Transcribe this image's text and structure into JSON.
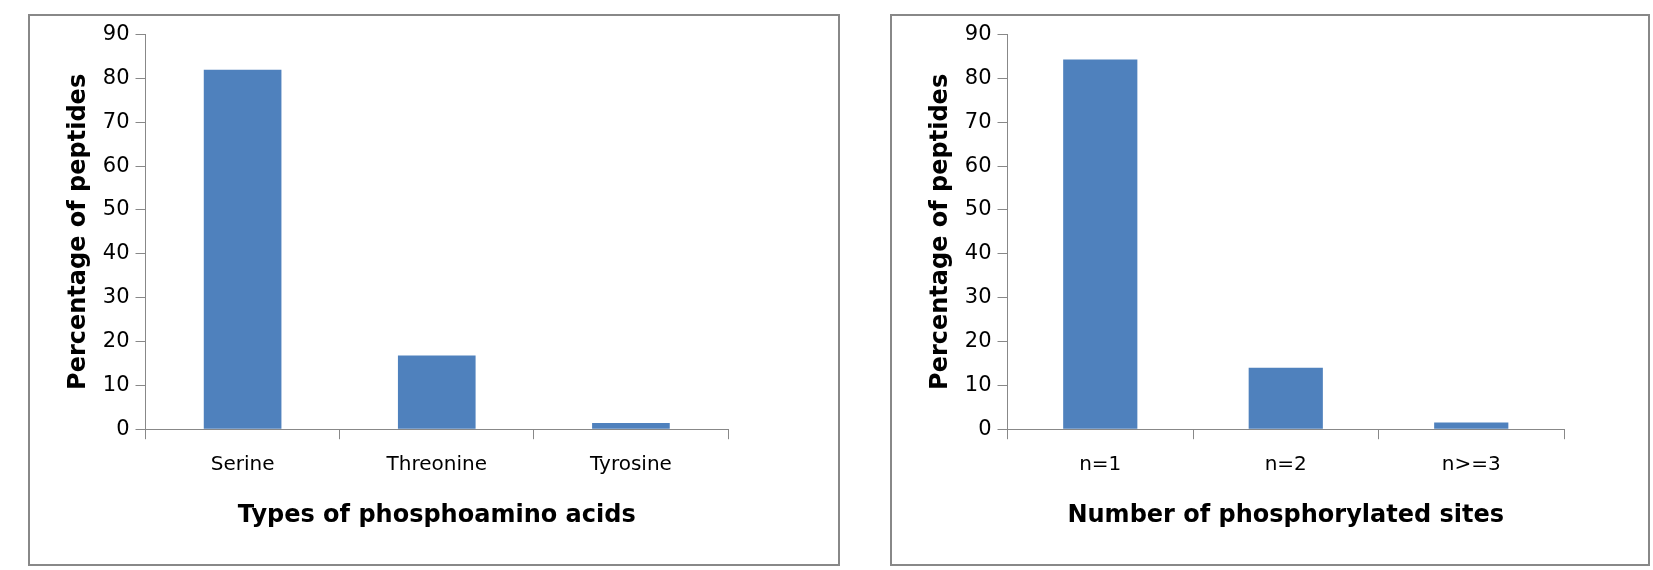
{
  "chart_data": [
    {
      "type": "bar",
      "xlabel": "Types of phosphoamino acids",
      "ylabel": "Percentage of peptides",
      "categories": [
        "Serine",
        "Threonine",
        "Tyrosine"
      ],
      "values": [
        82,
        16.8,
        1.4
      ],
      "color": "#4f81bd",
      "ylim": [
        0,
        90
      ],
      "yticks": [
        0,
        10,
        20,
        30,
        40,
        50,
        60,
        70,
        80,
        90
      ],
      "grid": false,
      "legend": false
    },
    {
      "type": "bar",
      "xlabel": "Number of phosphorylated sites",
      "ylabel": "Percentage of peptides",
      "categories": [
        "n=1",
        "n=2",
        "n>=3"
      ],
      "values": [
        84.3,
        14,
        1.5
      ],
      "color": "#4f81bd",
      "ylim": [
        0,
        90
      ],
      "yticks": [
        0,
        10,
        20,
        30,
        40,
        50,
        60,
        70,
        80,
        90
      ],
      "grid": false,
      "legend": false
    }
  ]
}
